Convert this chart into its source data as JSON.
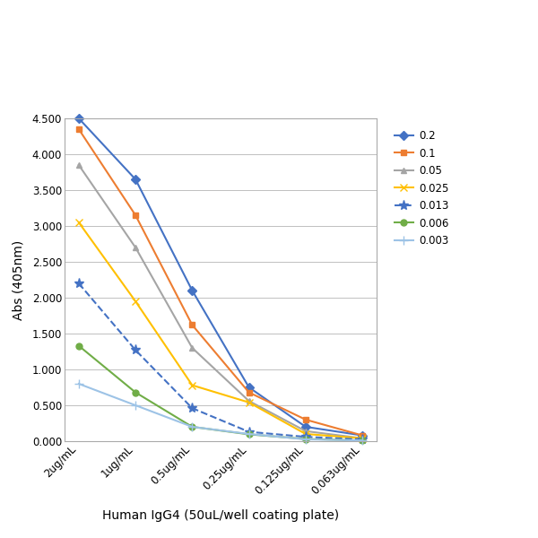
{
  "x_labels": [
    "2ug/mL",
    "1ug/mL",
    "0.5ug/mL",
    "0.25ug/mL",
    "0.125ug/mL",
    "0.063ug/mL"
  ],
  "x_values": [
    0,
    1,
    2,
    3,
    4,
    5
  ],
  "series": [
    {
      "label": "0.2",
      "color": "#4472C4",
      "marker": "D",
      "markersize": 5,
      "linewidth": 1.5,
      "values": [
        4.5,
        3.65,
        2.1,
        0.75,
        0.2,
        0.08
      ]
    },
    {
      "label": "0.1",
      "color": "#ED7D31",
      "marker": "s",
      "markersize": 5,
      "linewidth": 1.5,
      "values": [
        4.35,
        3.15,
        1.62,
        0.68,
        0.3,
        0.08
      ]
    },
    {
      "label": "0.05",
      "color": "#A5A5A5",
      "marker": "^",
      "markersize": 5,
      "linewidth": 1.5,
      "values": [
        3.85,
        2.7,
        1.3,
        0.56,
        0.14,
        0.04
      ]
    },
    {
      "label": "0.025",
      "color": "#FFC000",
      "marker": "x",
      "markersize": 6,
      "linewidth": 1.5,
      "values": [
        3.05,
        1.95,
        0.78,
        0.54,
        0.1,
        0.04
      ]
    },
    {
      "label": "0.013",
      "color": "#4472C4",
      "marker": "*",
      "markersize": 8,
      "linewidth": 1.5,
      "line_style": "--",
      "values": [
        2.2,
        1.27,
        0.46,
        0.13,
        0.06,
        0.025
      ]
    },
    {
      "label": "0.006",
      "color": "#70AD47",
      "marker": "o",
      "markersize": 5,
      "linewidth": 1.5,
      "values": [
        1.33,
        0.68,
        0.2,
        0.095,
        0.03,
        0.01
      ]
    },
    {
      "label": "0.003",
      "color": "#9DC3E6",
      "marker": "+",
      "markersize": 7,
      "linewidth": 1.5,
      "values": [
        0.8,
        0.5,
        0.2,
        0.1,
        0.025,
        0.01
      ]
    }
  ],
  "xlabel": "Human IgG4 (50uL/well coating plate)",
  "ylabel": "Abs (405nm)",
  "ylim": [
    0.0,
    4.5
  ],
  "yticks": [
    0.0,
    0.5,
    1.0,
    1.5,
    2.0,
    2.5,
    3.0,
    3.5,
    4.0,
    4.5
  ],
  "background_color": "#FFFFFF",
  "plot_bg_color": "#FFFFFF",
  "grid_color": "#C0C0C0",
  "legend_fontsize": 8.5,
  "axis_label_fontsize": 10,
  "tick_fontsize": 8.5,
  "outer_box_color": "#AAAAAA"
}
